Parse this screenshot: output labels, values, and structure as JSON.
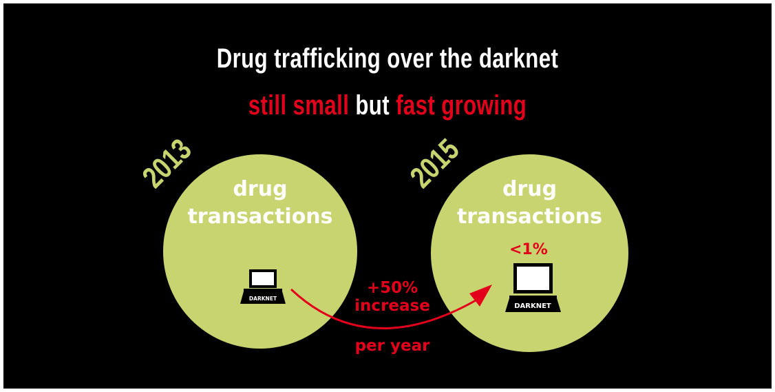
{
  "title": {
    "line1": "Drug trafficking over the darknet",
    "line2_part1": "still small",
    "line2_part2": " but ",
    "line2_part3": "fast growing"
  },
  "left": {
    "year": "2013",
    "label_line1": "drug",
    "label_line2": "transactions",
    "device_label": "DARKNET"
  },
  "right": {
    "year": "2015",
    "label_line1": "drug",
    "label_line2": "transactions",
    "share": "<1%",
    "device_label": "DARKNET"
  },
  "growth": {
    "amount": "+50%",
    "word": "increase",
    "period": "per year"
  },
  "colors": {
    "background": "#000000",
    "circle": "#c8d46f",
    "accent": "#e3001b",
    "text": "#ffffff"
  },
  "icons": [
    "laptop-icon",
    "growth-arrow-icon"
  ]
}
